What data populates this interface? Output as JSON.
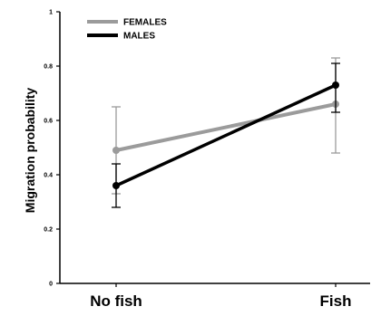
{
  "chart_data": {
    "type": "line",
    "title": "",
    "xlabel": "",
    "ylabel": "Migration probability",
    "categories": [
      "No fish",
      "Fish"
    ],
    "ylim": [
      0,
      1
    ],
    "yticks": [
      "0",
      "0.2",
      "0.4",
      "0.6",
      "0.8",
      "1"
    ],
    "grid": false,
    "legend_position": "top-left",
    "series": [
      {
        "name": "FEMALES",
        "color": "#9b9b9b",
        "values": [
          0.49,
          0.66
        ],
        "err_low": [
          0.33,
          0.48
        ],
        "err_high": [
          0.65,
          0.83
        ]
      },
      {
        "name": "MALES",
        "color": "#000000",
        "values": [
          0.36,
          0.73
        ],
        "err_low": [
          0.28,
          0.63
        ],
        "err_high": [
          0.44,
          0.81
        ]
      }
    ]
  }
}
